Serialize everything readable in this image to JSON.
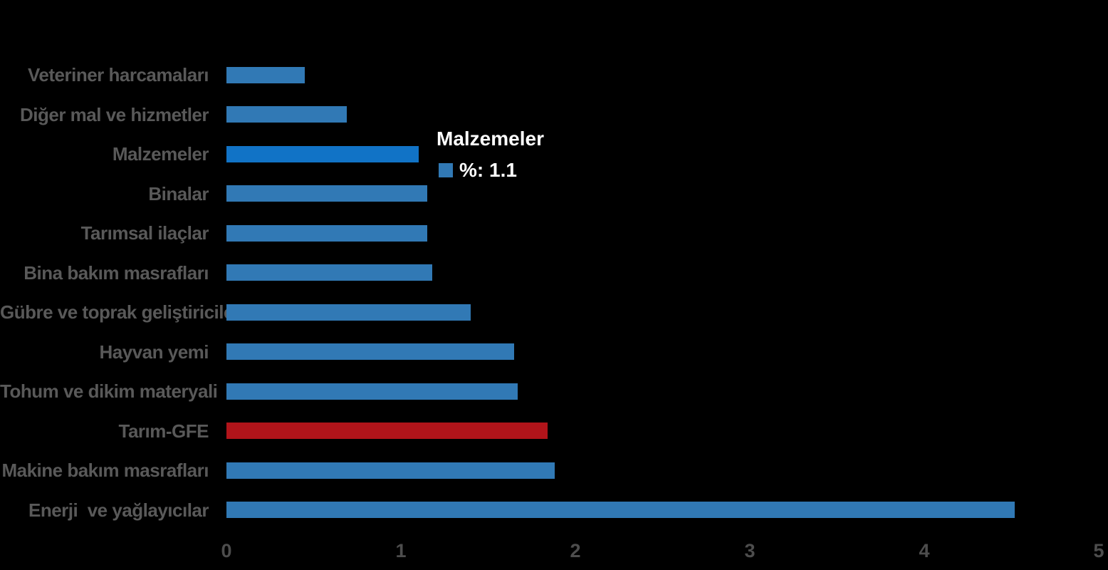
{
  "chart_data": {
    "type": "bar",
    "orientation": "horizontal",
    "title": "",
    "xlabel": "",
    "ylabel": "",
    "xlim": [
      0,
      5
    ],
    "tick_labels": [
      "0",
      "1",
      "2",
      "3",
      "4",
      "5"
    ],
    "grid": false,
    "legend_position": "none",
    "categories": [
      "Veteriner harcamaları",
      "Diğer mal ve hizmetler",
      "Malzemeler",
      "Binalar",
      "Tarımsal ilaçlar",
      "Bina bakım masrafları",
      "Gübre ve toprak geliştiriciler",
      "Hayvan yemi",
      "Tohum ve dikim materyali",
      "Tarım-GFE",
      "Makine bakım masrafları",
      "Enerji  ve yağlayıcılar"
    ],
    "values": [
      0.45,
      0.69,
      1.1,
      1.15,
      1.15,
      1.18,
      1.4,
      1.65,
      1.67,
      1.84,
      1.88,
      4.52
    ],
    "bar_roles": [
      "normal",
      "normal",
      "highlight",
      "normal",
      "normal",
      "normal",
      "normal",
      "normal",
      "normal",
      "emphasis",
      "normal",
      "normal"
    ],
    "highlighted_category": "Malzemeler",
    "emphasized_category": "Tarım-GFE"
  },
  "tooltip": {
    "title": "Malzemeler",
    "series_label": "%",
    "value": "1.1",
    "value_text": "%: 1.1"
  },
  "colors": {
    "background": "#000000",
    "bar_normal": "#3179B5",
    "bar_highlight": "#1173C6",
    "bar_emphasis": "#B1141A",
    "category_label": "#595959",
    "tick_label": "#4D4D4D",
    "tooltip_text": "#FFFFFF",
    "tooltip_swatch": "#3179B5"
  }
}
